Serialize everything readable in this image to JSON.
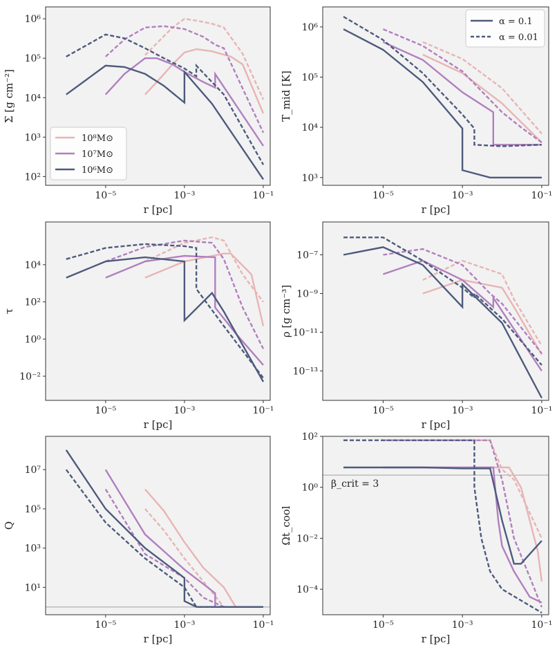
{
  "legend_mass": {
    "entries": [
      {
        "label": "10⁸M⊙",
        "color": "#e8b4b4"
      },
      {
        "label": "10⁷M⊙",
        "color": "#b07fbe"
      },
      {
        "label": "10⁶M⊙",
        "color": "#4d5a7c"
      }
    ]
  },
  "legend_alpha": {
    "entries": [
      {
        "label": "α = 0.1",
        "style": "solid"
      },
      {
        "label": "α = 0.01",
        "style": "dashed"
      }
    ]
  },
  "chart_data": [
    {
      "type": "line",
      "id": "sigma",
      "xlabel": "r [pc]",
      "ylabel": "Σ [g cm⁻²]",
      "xscale": "log",
      "yscale": "log",
      "xlim": [
        3e-07,
        0.15
      ],
      "ylim": [
        60,
        2000000.0
      ],
      "xticks": [
        "10⁻⁵",
        "10⁻³",
        "10⁻¹"
      ],
      "yticks": [
        "10²",
        "10³",
        "10⁴",
        "10⁵",
        "10⁶"
      ],
      "series": [
        {
          "name": "10⁸M⊙, α=0.1",
          "mass": "1e8",
          "alpha": "0.1",
          "x": [
            0.0001,
            0.0002,
            0.0005,
            0.001,
            0.002,
            0.005,
            0.015,
            0.03,
            0.1
          ],
          "y": [
            12000,
            25000,
            70000,
            140000,
            170000,
            150000,
            110000,
            70000,
            4000
          ]
        },
        {
          "name": "10⁸M⊙, α=0.01",
          "mass": "1e8",
          "alpha": "0.01",
          "x": [
            0.0001,
            0.0002,
            0.0005,
            0.001,
            0.002,
            0.005,
            0.01,
            0.03,
            0.1
          ],
          "y": [
            120000,
            240000,
            600000,
            1000000,
            900000,
            750000,
            600000,
            130000,
            9000
          ]
        },
        {
          "name": "10⁷M⊙, α=0.1",
          "mass": "1e7",
          "alpha": "0.1",
          "x": [
            1e-05,
            3e-05,
            0.0001,
            0.0002,
            0.0005,
            0.001,
            0.003,
            0.006,
            0.006,
            0.1
          ],
          "y": [
            12000,
            40000,
            100000,
            100000,
            70000,
            45000,
            25000,
            18000,
            40000,
            600
          ]
        },
        {
          "name": "10⁷M⊙, α=0.01",
          "mass": "1e7",
          "alpha": "0.01",
          "x": [
            1e-05,
            3e-05,
            0.0001,
            0.0003,
            0.001,
            0.003,
            0.006,
            0.01,
            0.1
          ],
          "y": [
            110000,
            300000,
            600000,
            650000,
            550000,
            350000,
            220000,
            180000,
            1300
          ]
        },
        {
          "name": "10⁶M⊙, α=0.1",
          "mass": "1e6",
          "alpha": "0.1",
          "x": [
            1e-06,
            1e-05,
            3e-05,
            0.0001,
            0.0003,
            0.001,
            0.001,
            0.005,
            0.1
          ],
          "y": [
            12000,
            65000,
            60000,
            40000,
            20000,
            7500,
            45000,
            7000,
            85
          ]
        },
        {
          "name": "10⁶M⊙, α=0.01",
          "mass": "1e6",
          "alpha": "0.01",
          "x": [
            1e-06,
            1e-05,
            3e-05,
            0.0001,
            0.0003,
            0.001,
            0.002,
            0.002,
            0.01,
            0.1
          ],
          "y": [
            110000,
            400000,
            320000,
            180000,
            100000,
            55000,
            35000,
            65000,
            12000,
            200
          ]
        }
      ]
    },
    {
      "type": "line",
      "id": "tmid",
      "xlabel": "r [pc]",
      "ylabel": "T_mid [K]",
      "xscale": "log",
      "yscale": "log",
      "xlim": [
        3e-07,
        0.15
      ],
      "ylim": [
        700,
        2500000.0
      ],
      "xticks": [
        "10⁻⁵",
        "10⁻³",
        "10⁻¹"
      ],
      "yticks": [
        "10³",
        "10⁴",
        "10⁵",
        "10⁶"
      ],
      "series": [
        {
          "name": "10⁸M⊙, α=0.1",
          "mass": "1e8",
          "alpha": "0.1",
          "x": [
            0.0001,
            0.001,
            0.01,
            0.1
          ],
          "y": [
            280000,
            120000,
            30000,
            5000
          ]
        },
        {
          "name": "10⁸M⊙, α=0.01",
          "mass": "1e8",
          "alpha": "0.01",
          "x": [
            0.0001,
            0.001,
            0.01,
            0.1
          ],
          "y": [
            500000,
            230000,
            60000,
            7500
          ]
        },
        {
          "name": "10⁷M⊙, α=0.1",
          "mass": "1e7",
          "alpha": "0.1",
          "x": [
            1e-05,
            0.0001,
            0.001,
            0.006,
            0.006,
            0.1
          ],
          "y": [
            500000,
            220000,
            50000,
            20000,
            4500,
            4500
          ]
        },
        {
          "name": "10⁷M⊙, α=0.01",
          "mass": "1e7",
          "alpha": "0.01",
          "x": [
            1e-05,
            0.0001,
            0.001,
            0.01,
            0.03,
            0.1
          ],
          "y": [
            900000,
            420000,
            130000,
            20000,
            10000,
            5000
          ]
        },
        {
          "name": "10⁶M⊙, α=0.1",
          "mass": "1e6",
          "alpha": "0.1",
          "x": [
            1e-06,
            1e-05,
            0.0001,
            0.001,
            0.001,
            0.005,
            0.1
          ],
          "y": [
            900000,
            350000,
            80000,
            9500,
            1400,
            1000,
            1000
          ]
        },
        {
          "name": "10⁶M⊙, α=0.01",
          "mass": "1e6",
          "alpha": "0.01",
          "x": [
            1e-06,
            1e-05,
            0.0001,
            0.001,
            0.002,
            0.002,
            0.01,
            0.1
          ],
          "y": [
            1600000,
            550000,
            120000,
            18000,
            9500,
            4500,
            4200,
            4500
          ]
        }
      ],
      "legend": "top-right"
    },
    {
      "type": "line",
      "id": "tau",
      "xlabel": "r [pc]",
      "ylabel": "τ",
      "xscale": "log",
      "yscale": "log",
      "xlim": [
        3e-07,
        0.15
      ],
      "ylim": [
        0.0005,
        2000000.0
      ],
      "xticks": [
        "10⁻⁵",
        "10⁻³",
        "10⁻¹"
      ],
      "yticks": [
        "10⁻²",
        "10⁰",
        "10²",
        "10⁴"
      ],
      "series": [
        {
          "name": "10⁸M⊙, α=0.1",
          "mass": "1e8",
          "alpha": "0.1",
          "x": [
            0.0001,
            0.001,
            0.01,
            0.015,
            0.05,
            0.1
          ],
          "y": [
            2000,
            15000,
            40000,
            40000,
            3000,
            5
          ]
        },
        {
          "name": "10⁸M⊙, α=0.01",
          "mass": "1e8",
          "alpha": "0.01",
          "x": [
            0.0001,
            0.001,
            0.005,
            0.01,
            0.03,
            0.1
          ],
          "y": [
            15000,
            150000,
            300000,
            200000,
            3000,
            100
          ]
        },
        {
          "name": "10⁷M⊙, α=0.1",
          "mass": "1e7",
          "alpha": "0.1",
          "x": [
            1e-05,
            0.0001,
            0.001,
            0.006,
            0.006,
            0.02,
            0.1
          ],
          "y": [
            2000,
            15000,
            30000,
            25000,
            50,
            2,
            0.04
          ]
        },
        {
          "name": "10⁷M⊙, α=0.01",
          "mass": "1e7",
          "alpha": "0.01",
          "x": [
            1e-05,
            0.0001,
            0.001,
            0.005,
            0.01,
            0.03,
            0.1
          ],
          "y": [
            15000,
            90000,
            200000,
            150000,
            20000,
            50,
            0.3
          ]
        },
        {
          "name": "10⁶M⊙, α=0.1",
          "mass": "1e6",
          "alpha": "0.1",
          "x": [
            1e-06,
            1e-05,
            0.0001,
            0.001,
            0.001,
            0.005,
            0.01,
            0.1
          ],
          "y": [
            2000,
            15000,
            25000,
            15000,
            10,
            300,
            30,
            0.005
          ]
        },
        {
          "name": "10⁶M⊙, α=0.01",
          "mass": "1e6",
          "alpha": "0.01",
          "x": [
            1e-06,
            1e-05,
            0.0001,
            0.001,
            0.002,
            0.002,
            0.01,
            0.1
          ],
          "y": [
            20000,
            80000,
            130000,
            100000,
            80000,
            500,
            5,
            0.008
          ]
        }
      ]
    },
    {
      "type": "line",
      "id": "rho",
      "xlabel": "r [pc]",
      "ylabel": "ρ [g cm⁻³]",
      "xscale": "log",
      "yscale": "log",
      "xlim": [
        3e-07,
        0.15
      ],
      "ylim": [
        3e-15,
        5e-06
      ],
      "xticks": [
        "10⁻⁵",
        "10⁻³",
        "10⁻¹"
      ],
      "yticks": [
        "10⁻⁷",
        "10⁻⁹",
        "10⁻¹¹",
        "10⁻¹³"
      ],
      "series": [
        {
          "name": "10⁸M⊙, α=0.1",
          "mass": "1e8",
          "alpha": "0.1",
          "x": [
            0.0001,
            0.001,
            0.01,
            0.02,
            0.1
          ],
          "y": [
            1e-09,
            5e-09,
            2e-09,
            2e-10,
            7e-13
          ]
        },
        {
          "name": "10⁸M⊙, α=0.01",
          "mass": "1e8",
          "alpha": "0.01",
          "x": [
            0.0001,
            0.001,
            0.01,
            0.02,
            0.1
          ],
          "y": [
            5e-09,
            5e-08,
            1e-08,
            5e-10,
            2e-12
          ]
        },
        {
          "name": "10⁷M⊙, α=0.1",
          "mass": "1e7",
          "alpha": "0.1",
          "x": [
            1e-05,
            0.0001,
            0.001,
            0.006,
            0.006,
            0.1
          ],
          "y": [
            1e-08,
            5e-08,
            5e-09,
            2e-10,
            6e-10,
            1e-13
          ]
        },
        {
          "name": "10⁷M⊙, α=0.01",
          "mass": "1e7",
          "alpha": "0.01",
          "x": [
            1e-05,
            0.0001,
            0.001,
            0.005,
            0.01,
            0.1
          ],
          "y": [
            1e-07,
            2e-07,
            3e-08,
            1e-09,
            3e-10,
            8e-13
          ]
        },
        {
          "name": "10⁶M⊙, α=0.1",
          "mass": "1e6",
          "alpha": "0.1",
          "x": [
            1e-06,
            1e-05,
            0.0001,
            0.001,
            0.001,
            0.01,
            0.1
          ],
          "y": [
            1e-07,
            2.5e-07,
            3e-08,
            2e-10,
            3e-09,
            3e-11,
            4e-15
          ]
        },
        {
          "name": "10⁶M⊙, α=0.01",
          "mass": "1e6",
          "alpha": "0.01",
          "x": [
            1e-06,
            1e-05,
            0.0001,
            0.001,
            0.002,
            0.002,
            0.01,
            0.1
          ],
          "y": [
            8e-07,
            8e-07,
            5e-08,
            2e-09,
            6e-10,
            1e-09,
            5e-11,
            2e-13
          ]
        }
      ]
    },
    {
      "type": "line",
      "id": "toomre",
      "xlabel": "r [pc]",
      "ylabel": "Q",
      "xscale": "log",
      "yscale": "log",
      "xlim": [
        3e-07,
        0.15
      ],
      "ylim": [
        0.4,
        500000000.0
      ],
      "xticks": [
        "10⁻⁵",
        "10⁻³",
        "10⁻¹"
      ],
      "yticks": [
        "10¹",
        "10³",
        "10⁵",
        "10⁷"
      ],
      "hline": 1,
      "series": [
        {
          "name": "10⁸M⊙, α=0.1",
          "mass": "1e8",
          "alpha": "0.1",
          "x": [
            0.0001,
            0.0003,
            0.001,
            0.003,
            0.01,
            0.02,
            0.1
          ],
          "y": [
            1000000.0,
            80000.0,
            2000,
            100,
            10,
            1,
            1
          ]
        },
        {
          "name": "10⁸M⊙, α=0.01",
          "mass": "1e8",
          "alpha": "0.01",
          "x": [
            0.0001,
            0.0003,
            0.001,
            0.003,
            0.01,
            0.1
          ],
          "y": [
            100000.0,
            8000,
            300,
            20,
            1,
            1
          ]
        },
        {
          "name": "10⁷M⊙, α=0.1",
          "mass": "1e7",
          "alpha": "0.1",
          "x": [
            1e-05,
            0.0001,
            0.001,
            0.003,
            0.006,
            0.006,
            0.1
          ],
          "y": [
            10000000.0,
            5000,
            80,
            15,
            5,
            1,
            1
          ]
        },
        {
          "name": "10⁷M⊙, α=0.01",
          "mass": "1e7",
          "alpha": "0.01",
          "x": [
            1e-05,
            0.0001,
            0.001,
            0.003,
            0.01,
            0.1
          ],
          "y": [
            1000000.0,
            500,
            30,
            3,
            1,
            1
          ]
        },
        {
          "name": "10⁶M⊙, α=0.1",
          "mass": "1e6",
          "alpha": "0.1",
          "x": [
            1e-06,
            1e-05,
            0.0001,
            0.001,
            0.001,
            0.002,
            0.1
          ],
          "y": [
            100000000.0,
            100000.0,
            1000,
            30,
            2,
            1,
            1
          ]
        },
        {
          "name": "10⁶M⊙, α=0.01",
          "mass": "1e6",
          "alpha": "0.01",
          "x": [
            1e-06,
            1e-05,
            0.0001,
            0.001,
            0.002,
            0.1
          ],
          "y": [
            10000000.0,
            20000.0,
            300,
            10,
            1,
            1
          ]
        }
      ]
    },
    {
      "type": "line",
      "id": "cooling",
      "xlabel": "r [pc]",
      "ylabel": "Ωt_cool",
      "xscale": "log",
      "yscale": "log",
      "xlim": [
        3e-07,
        0.15
      ],
      "ylim": [
        1e-05,
        100
      ],
      "xticks": [
        "10⁻⁵",
        "10⁻³",
        "10⁻¹"
      ],
      "yticks": [
        "10⁻⁴",
        "10⁻²",
        "10⁰",
        "10²"
      ],
      "hline": 3,
      "annotation": "β_crit = 3",
      "series": [
        {
          "name": "10⁸M⊙, α=0.1",
          "mass": "1e8",
          "alpha": "0.1",
          "x": [
            0.0001,
            0.001,
            0.01,
            0.015,
            0.03,
            0.05,
            0.08,
            0.1
          ],
          "y": [
            6,
            6,
            6,
            6,
            1,
            0.05,
            0.003,
            0.0002
          ]
        },
        {
          "name": "10⁸M⊙, α=0.01",
          "mass": "1e8",
          "alpha": "0.01",
          "x": [
            0.0001,
            0.001,
            0.005,
            0.01,
            0.02,
            0.05,
            0.1
          ],
          "y": [
            70,
            70,
            70,
            5,
            2,
            0.1,
            0.01
          ]
        },
        {
          "name": "10⁷M⊙, α=0.1",
          "mass": "1e7",
          "alpha": "0.1",
          "x": [
            1e-05,
            0.0001,
            0.001,
            0.006,
            0.008,
            0.01,
            0.02,
            0.05,
            0.1
          ],
          "y": [
            6,
            6,
            6,
            6,
            0.05,
            0.005,
            0.0005,
            5e-05,
            3e-05
          ]
        },
        {
          "name": "10⁷M⊙, α=0.01",
          "mass": "1e7",
          "alpha": "0.01",
          "x": [
            1e-05,
            0.0001,
            0.001,
            0.005,
            0.01,
            0.02,
            0.05,
            0.1
          ],
          "y": [
            70,
            70,
            70,
            70,
            2,
            0.01,
            0.0003,
            2e-05
          ]
        },
        {
          "name": "10⁶M⊙, α=0.1",
          "mass": "1e6",
          "alpha": "0.1",
          "x": [
            1e-06,
            1e-05,
            0.0001,
            0.001,
            0.005,
            0.01,
            0.02,
            0.03,
            0.1
          ],
          "y": [
            6,
            6,
            6,
            5.5,
            5.5,
            0.05,
            0.001,
            0.001,
            0.008
          ]
        },
        {
          "name": "10⁶M⊙, α=0.01",
          "mass": "1e6",
          "alpha": "0.01",
          "x": [
            1e-06,
            1e-05,
            0.0001,
            0.001,
            0.002,
            0.002,
            0.003,
            0.005,
            0.01,
            0.1
          ],
          "y": [
            70,
            70,
            70,
            70,
            70,
            1,
            0.01,
            0.0005,
            0.0001,
            1.2e-05
          ]
        }
      ]
    }
  ]
}
